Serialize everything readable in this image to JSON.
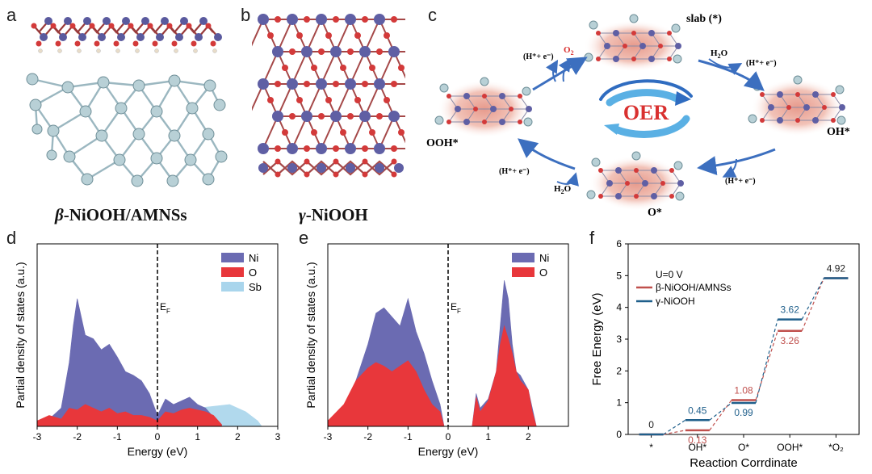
{
  "panels": {
    "a": {
      "label": "a",
      "caption_greek": "β",
      "caption_rest": "-NiOOH/AMNSs"
    },
    "b": {
      "label": "b",
      "caption_greek": "γ",
      "caption_rest": "-NiOOH"
    },
    "c": {
      "label": "c",
      "center_text": "OER",
      "states": {
        "slab": "slab (*)",
        "oh": "OH*",
        "o": "O*",
        "ooh": "OOH*"
      },
      "species": {
        "o2": "O",
        "o2_sub": "2",
        "h2o_top": "H",
        "h2o_top_sub": "2",
        "h2o_top_end": "O",
        "h2o_bottom": "H",
        "h2o_bottom_sub": "2",
        "h2o_bottom_end": "O",
        "proton_electron": "(H⁺+ e⁻)"
      }
    },
    "d": {
      "label": "d",
      "ylabel": "Partial density of states (a.u.)",
      "xlabel": "Energy (eV)",
      "fermi_label": "E",
      "fermi_sub": "F",
      "legend": [
        "Ni",
        "O",
        "Sb"
      ],
      "xticks": [
        "-3",
        "-2",
        "-1",
        "0",
        "1",
        "2",
        "3"
      ]
    },
    "e": {
      "label": "e",
      "ylabel": "Partial density of states (a.u.)",
      "xlabel": "Energy (eV)",
      "fermi_label": "E",
      "fermi_sub": "F",
      "legend": [
        "Ni",
        "O"
      ],
      "xticks": [
        "-3",
        "-2",
        "-1",
        "0",
        "1",
        "2"
      ]
    },
    "f": {
      "label": "f",
      "ylabel": "Free Energy (eV)",
      "xlabel": "Reaction Corrdinate",
      "legend_title": "U=0 V",
      "yticks": [
        "0",
        "1",
        "2",
        "3",
        "4",
        "5",
        "6"
      ]
    }
  },
  "colors": {
    "ni": "#6b6bb2",
    "o": "#e8373b",
    "sb": "#a9d5ec",
    "beta": "#c0504d",
    "gamma": "#1f5f8b",
    "oer_text": "#d9302f",
    "arrow": "#3c6fbf"
  },
  "chart_data": [
    {
      "panel": "d",
      "type": "area",
      "xlabel": "Energy (eV)",
      "ylabel": "Partial density of states (a.u.)",
      "xlim": [
        -3,
        3
      ],
      "series": [
        {
          "name": "Ni",
          "x": [
            -3,
            -2.7,
            -2.4,
            -2.2,
            -2.1,
            -2.0,
            -1.9,
            -1.8,
            -1.6,
            -1.4,
            -1.2,
            -1.0,
            -0.8,
            -0.6,
            -0.4,
            -0.2,
            0.0,
            0.2,
            0.4,
            0.6,
            0.8,
            1.0,
            1.2,
            1.4,
            1.6
          ],
          "values": [
            0.02,
            0.04,
            0.1,
            0.35,
            0.55,
            0.7,
            0.6,
            0.5,
            0.48,
            0.42,
            0.45,
            0.38,
            0.3,
            0.28,
            0.25,
            0.18,
            0.06,
            0.15,
            0.12,
            0.14,
            0.16,
            0.12,
            0.1,
            0.05,
            0.01
          ]
        },
        {
          "name": "O",
          "x": [
            -3,
            -2.7,
            -2.4,
            -2.2,
            -2.0,
            -1.8,
            -1.6,
            -1.4,
            -1.2,
            -1.0,
            -0.8,
            -0.6,
            -0.4,
            -0.2,
            0.0,
            0.2,
            0.4,
            0.6,
            0.8,
            1.0,
            1.2,
            1.4,
            1.6
          ],
          "values": [
            0.03,
            0.06,
            0.04,
            0.1,
            0.09,
            0.12,
            0.1,
            0.08,
            0.1,
            0.07,
            0.08,
            0.06,
            0.06,
            0.05,
            0.03,
            0.08,
            0.07,
            0.09,
            0.1,
            0.09,
            0.08,
            0.06,
            0.01
          ]
        },
        {
          "name": "Sb",
          "x": [
            -3,
            -2.6,
            -2.2,
            -1.8,
            -1.4,
            -1.0,
            -0.6,
            -0.2,
            0.2,
            0.6,
            1.0,
            1.4,
            1.8,
            2.2,
            2.5,
            2.6
          ],
          "values": [
            0.02,
            0.04,
            0.05,
            0.06,
            0.07,
            0.06,
            0.06,
            0.05,
            0.06,
            0.08,
            0.1,
            0.11,
            0.12,
            0.08,
            0.03,
            0.0
          ]
        }
      ]
    },
    {
      "panel": "e",
      "type": "area",
      "xlabel": "Energy (eV)",
      "ylabel": "Partial density of states (a.u.)",
      "xlim": [
        -3,
        2.2
      ],
      "series": [
        {
          "name": "Ni",
          "x": [
            -3,
            -2.6,
            -2.3,
            -2.0,
            -1.8,
            -1.6,
            -1.4,
            -1.2,
            -1.0,
            -0.8,
            -0.6,
            -0.4,
            -0.2,
            -0.1,
            0.6,
            0.7,
            0.8,
            1.0,
            1.2,
            1.3,
            1.4,
            1.5,
            1.6,
            1.7,
            1.8,
            2.0,
            2.1,
            2.2
          ],
          "values": [
            0.02,
            0.08,
            0.25,
            0.45,
            0.62,
            0.65,
            0.6,
            0.55,
            0.7,
            0.52,
            0.4,
            0.25,
            0.12,
            0.0,
            0.0,
            0.18,
            0.1,
            0.15,
            0.3,
            0.55,
            0.8,
            0.7,
            0.45,
            0.3,
            0.28,
            0.2,
            0.1,
            0.0
          ]
        },
        {
          "name": "O",
          "x": [
            -3,
            -2.6,
            -2.3,
            -2.0,
            -1.8,
            -1.6,
            -1.4,
            -1.2,
            -1.0,
            -0.8,
            -0.6,
            -0.4,
            -0.2,
            -0.1,
            0.6,
            0.7,
            0.8,
            1.0,
            1.2,
            1.3,
            1.4,
            1.5,
            1.6,
            1.7,
            1.8,
            2.0,
            2.1,
            2.2
          ],
          "values": [
            0.03,
            0.12,
            0.25,
            0.32,
            0.35,
            0.33,
            0.3,
            0.33,
            0.36,
            0.3,
            0.2,
            0.12,
            0.08,
            0.0,
            0.0,
            0.16,
            0.08,
            0.14,
            0.3,
            0.45,
            0.55,
            0.48,
            0.4,
            0.3,
            0.25,
            0.2,
            0.08,
            0.0
          ]
        }
      ]
    },
    {
      "panel": "f",
      "type": "line",
      "title": "",
      "xlabel": "Reaction Corrdinate",
      "ylabel": "Free Energy (eV)",
      "categories": [
        "*",
        "OH*",
        "O*",
        "OOH*",
        "*O₂"
      ],
      "ylim": [
        0,
        6
      ],
      "series": [
        {
          "name": "β-NiOOH/AMNSs",
          "values": [
            0,
            0.13,
            1.08,
            3.26,
            4.92
          ],
          "labels": [
            "0",
            "0.13",
            "1.08",
            "3.26",
            "4.92"
          ]
        },
        {
          "name": "γ-NiOOH",
          "values": [
            0,
            0.45,
            0.99,
            3.62,
            4.92
          ],
          "labels": [
            "",
            "0.45",
            "0.99",
            "3.62",
            ""
          ]
        }
      ]
    }
  ]
}
